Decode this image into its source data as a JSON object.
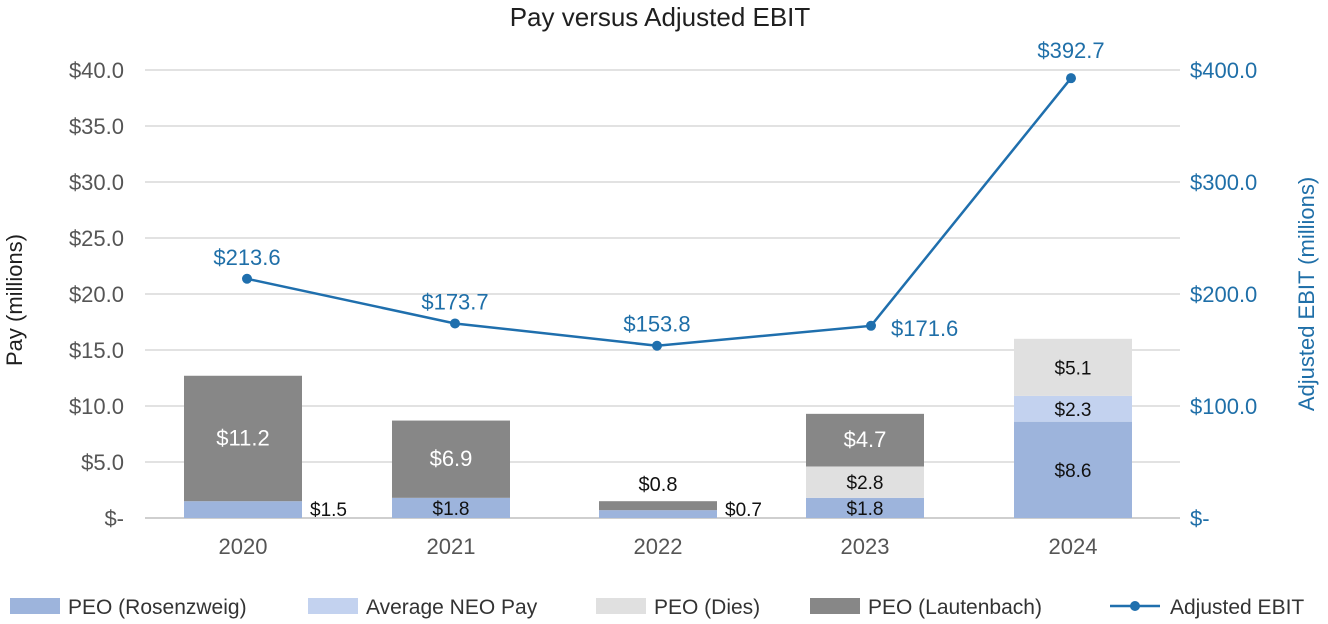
{
  "chart_data": {
    "type": "bar",
    "title": "Pay versus Adjusted EBIT",
    "categories": [
      "2020",
      "2021",
      "2022",
      "2023",
      "2024"
    ],
    "ylabel": "Pay (millions)",
    "ylim": [
      0,
      40
    ],
    "yticks": [
      0,
      5,
      10,
      15,
      20,
      25,
      30,
      35,
      40
    ],
    "ytick_labels": [
      "$-",
      "$5.0",
      "$10.0",
      "$15.0",
      "$20.0",
      "$25.0",
      "$30.0",
      "$35.0",
      "$40.0"
    ],
    "y2label": "Adjusted EBIT (millions)",
    "y2lim": [
      0,
      400
    ],
    "y2ticks": [
      0,
      100,
      200,
      300,
      400
    ],
    "y2tick_labels": [
      "$-",
      "$100.0",
      "$200.0",
      "$300.0",
      "$400.0"
    ],
    "grid": true,
    "legend_position": "bottom",
    "series": [
      {
        "name": "PEO (Rosenzweig)",
        "kind": "stacked-bar",
        "color": "#9db4dc",
        "values": [
          1.5,
          1.8,
          0.7,
          1.8,
          8.6
        ],
        "labels": [
          "$1.5",
          "$1.8",
          "$0.7",
          "$1.8",
          "$8.6"
        ]
      },
      {
        "name": "Average NEO Pay",
        "kind": "stacked-bar",
        "color": "#c3d2ef",
        "values": [
          null,
          null,
          null,
          null,
          2.3
        ],
        "labels": [
          null,
          null,
          null,
          null,
          "$2.3"
        ]
      },
      {
        "name": "PEO (Dies)",
        "kind": "stacked-bar",
        "color": "#e0e0e0",
        "values": [
          null,
          null,
          null,
          2.8,
          5.1
        ],
        "labels": [
          null,
          null,
          null,
          "$2.8",
          "$5.1"
        ]
      },
      {
        "name": "PEO (Lautenbach)",
        "kind": "stacked-bar",
        "color": "#878787",
        "values": [
          11.2,
          6.9,
          0.8,
          4.7,
          null
        ],
        "labels": [
          "$11.2",
          "$6.9",
          "$0.8",
          "$4.7",
          null
        ]
      },
      {
        "name": "Adjusted EBIT",
        "kind": "line",
        "axis": "right",
        "color": "#1f6fad",
        "values": [
          213.6,
          173.7,
          153.8,
          171.6,
          392.7
        ],
        "labels": [
          "$213.6",
          "$173.7",
          "$153.8",
          "$171.6",
          "$392.7"
        ]
      }
    ]
  }
}
